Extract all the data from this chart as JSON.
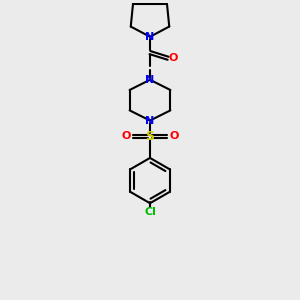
{
  "background_color": "#ebebeb",
  "bond_color": "#000000",
  "N_color": "#0000ff",
  "O_color": "#ff0000",
  "S_color": "#cccc00",
  "Cl_color": "#00bb00",
  "figsize": [
    3.0,
    3.0
  ],
  "dpi": 100,
  "xlim": [
    0,
    10
  ],
  "ylim": [
    0,
    13
  ]
}
